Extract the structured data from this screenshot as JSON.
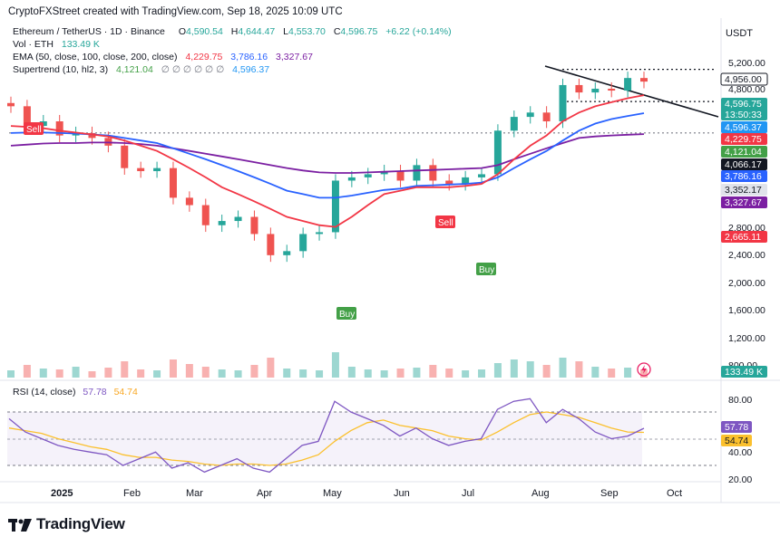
{
  "header": {
    "credit": "CryptoFXStreet created with TradingView.com, Sep 18, 2025 10:09 UTC"
  },
  "legend": {
    "symbol": "Ethereum / TetherUS · 1D · Binance",
    "o_label": "O",
    "o": "4,590.54",
    "h_label": "H",
    "h": "4,644.47",
    "l_label": "L",
    "l": "4,553.70",
    "c_label": "C",
    "c": "4,596.75",
    "change": "+6.22 (+0.14%)",
    "vol_label": "Vol · ETH",
    "vol": "133.49 K",
    "ema_label": "EMA (50, close, 100, close, 200, close)",
    "ema50": "4,229.75",
    "ema100": "3,786.16",
    "ema200": "3,327.67",
    "st_label": "Supertrend (10, hl2, 3)",
    "st_value": "4,121.04",
    "st_empty": "∅ ∅ ∅ ∅ ∅ ∅",
    "st_value2": "4,596.37"
  },
  "currency": "USDT",
  "price_axis": {
    "ticks": [
      "5,200.00",
      "4,800.00",
      "2,800.00",
      "2,400.00",
      "2,000.00",
      "1,600.00",
      "1,200.00",
      "800.00"
    ]
  },
  "price_tags": [
    {
      "text": "4,956.00",
      "bg": "#ffffff",
      "fg": "#131722",
      "border": "#131722"
    },
    {
      "text": "4,596.75",
      "sub": "13:50:33",
      "bg": "#26a69a",
      "fg": "#ffffff"
    },
    {
      "text": "4,596.37",
      "bg": "#2196f3",
      "fg": "#ffffff"
    },
    {
      "text": "4,229.75",
      "bg": "#f23645",
      "fg": "#ffffff"
    },
    {
      "text": "4,121.04",
      "bg": "#43a047",
      "fg": "#ffffff"
    },
    {
      "text": "4,066.17",
      "bg": "#131722",
      "fg": "#ffffff"
    },
    {
      "text": "3,786.16",
      "bg": "#2962ff",
      "fg": "#ffffff"
    },
    {
      "text": "3,352.17",
      "bg": "#e0e3eb",
      "fg": "#131722"
    },
    {
      "text": "3,327.67",
      "bg": "#7b1fa2",
      "fg": "#ffffff"
    },
    {
      "text": "2,665.11",
      "bg": "#f23645",
      "fg": "#ffffff"
    },
    {
      "text": "133.49 K",
      "bg": "#26a69a",
      "fg": "#ffffff"
    }
  ],
  "signals": [
    {
      "text": "Sell",
      "type": "sell"
    },
    {
      "text": "Buy",
      "type": "buy"
    },
    {
      "text": "Sell",
      "type": "sell"
    },
    {
      "text": "Buy",
      "type": "buy"
    }
  ],
  "rsi": {
    "label": "RSI (14, close)",
    "value": "57.78",
    "ma": "54.74",
    "ticks": [
      "80.00",
      "40.00",
      "20.00"
    ],
    "tag_value": "57.78",
    "tag_ma": "54.74"
  },
  "time_axis": [
    "2025",
    "Feb",
    "Mar",
    "Apr",
    "May",
    "Jun",
    "Jul",
    "Aug",
    "Sep",
    "Oct"
  ],
  "brand": "TradingView",
  "colors": {
    "up": "#26a69a",
    "down": "#ef5350",
    "ema50": "#f23645",
    "ema100": "#2962ff",
    "ema200": "#7b1fa2",
    "st_up": "#43a047",
    "st_down": "#f23645",
    "rsi": "#7e57c2",
    "rsi_ma": "#fbc02d"
  },
  "chart_data": {
    "type": "candlestick",
    "title": "Ethereum / TetherUS · 1D · Binance",
    "x": [
      "2024-12-15",
      "2024-12-22",
      "2024-12-29",
      "2025-01-05",
      "2025-01-12",
      "2025-01-19",
      "2025-01-26",
      "2025-02-02",
      "2025-02-09",
      "2025-02-16",
      "2025-02-23",
      "2025-03-02",
      "2025-03-09",
      "2025-03-16",
      "2025-03-23",
      "2025-03-30",
      "2025-04-06",
      "2025-04-13",
      "2025-04-20",
      "2025-04-27",
      "2025-05-04",
      "2025-05-11",
      "2025-05-18",
      "2025-05-25",
      "2025-06-01",
      "2025-06-08",
      "2025-06-15",
      "2025-06-22",
      "2025-06-29",
      "2025-07-06",
      "2025-07-13",
      "2025-07-20",
      "2025-07-27",
      "2025-08-03",
      "2025-08-10",
      "2025-08-17",
      "2025-08-24",
      "2025-08-31",
      "2025-09-07",
      "2025-09-14"
    ],
    "close": [
      3950,
      3500,
      3600,
      3300,
      3350,
      3250,
      3100,
      2700,
      2650,
      2700,
      2250,
      2150,
      1900,
      1950,
      2000,
      1800,
      1580,
      1620,
      1800,
      1820,
      2500,
      2550,
      2600,
      2650,
      2500,
      2750,
      2500,
      2450,
      2550,
      2600,
      3400,
      3700,
      3800,
      3600,
      4500,
      4300,
      4400,
      4350,
      4700,
      4597
    ],
    "ema50": [
      3500,
      3480,
      3450,
      3400,
      3360,
      3320,
      3280,
      3200,
      3100,
      3000,
      2850,
      2700,
      2550,
      2400,
      2300,
      2200,
      2100,
      2000,
      1950,
      1900,
      1880,
      2000,
      2150,
      2300,
      2350,
      2400,
      2400,
      2400,
      2420,
      2450,
      2600,
      2850,
      3100,
      3300,
      3600,
      3800,
      3950,
      4050,
      4150,
      4230
    ],
    "ema100": [
      3350,
      3360,
      3360,
      3350,
      3340,
      3320,
      3300,
      3250,
      3200,
      3150,
      3050,
      2950,
      2850,
      2750,
      2650,
      2550,
      2450,
      2350,
      2300,
      2250,
      2250,
      2280,
      2320,
      2360,
      2380,
      2420,
      2430,
      2440,
      2450,
      2470,
      2550,
      2700,
      2850,
      3000,
      3200,
      3400,
      3550,
      3650,
      3720,
      3786
    ],
    "ema200": [
      3100,
      3120,
      3140,
      3150,
      3150,
      3160,
      3160,
      3150,
      3130,
      3100,
      3050,
      3000,
      2950,
      2900,
      2850,
      2800,
      2750,
      2700,
      2660,
      2630,
      2620,
      2620,
      2630,
      2640,
      2650,
      2660,
      2670,
      2680,
      2690,
      2700,
      2750,
      2850,
      2950,
      3050,
      3150,
      3250,
      3280,
      3300,
      3315,
      3328
    ],
    "ylabel": "USDT",
    "ylim": [
      800,
      5200
    ],
    "annotations": [
      "Sell",
      "Buy",
      "Sell",
      "Buy"
    ],
    "horizontal_lines": [
      4956,
      4066.17,
      3352.17
    ],
    "rsi": {
      "value": 57.78,
      "ma": 54.74,
      "levels": [
        70,
        50,
        30
      ]
    }
  }
}
